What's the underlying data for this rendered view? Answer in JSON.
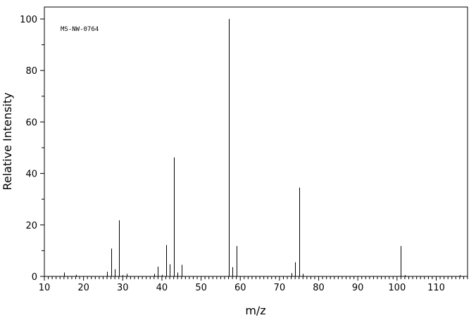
{
  "chart_data": {
    "type": "bar",
    "spectrum_id": "MS-NW-0764",
    "xlabel": "m/z",
    "ylabel": "Relative Intensity",
    "xlim": [
      10,
      118
    ],
    "ylim": [
      0,
      100
    ],
    "x_ticks": [
      10,
      20,
      30,
      40,
      50,
      60,
      70,
      80,
      90,
      100,
      110
    ],
    "y_ticks": [
      0,
      20,
      40,
      60,
      80,
      100
    ],
    "grid": false,
    "peaks": [
      {
        "mz": 15,
        "intensity": 1.5
      },
      {
        "mz": 18,
        "intensity": 0.6
      },
      {
        "mz": 26,
        "intensity": 1.8
      },
      {
        "mz": 27,
        "intensity": 10.8
      },
      {
        "mz": 28,
        "intensity": 2.8
      },
      {
        "mz": 29,
        "intensity": 21.8
      },
      {
        "mz": 30,
        "intensity": 0.5
      },
      {
        "mz": 31,
        "intensity": 1.0
      },
      {
        "mz": 38,
        "intensity": 1.0
      },
      {
        "mz": 39,
        "intensity": 3.8
      },
      {
        "mz": 40,
        "intensity": 0.6
      },
      {
        "mz": 41,
        "intensity": 12.2
      },
      {
        "mz": 42,
        "intensity": 4.7
      },
      {
        "mz": 43,
        "intensity": 46.2
      },
      {
        "mz": 44,
        "intensity": 1.5
      },
      {
        "mz": 45,
        "intensity": 4.5
      },
      {
        "mz": 57,
        "intensity": 100
      },
      {
        "mz": 58,
        "intensity": 3.6
      },
      {
        "mz": 59,
        "intensity": 11.8
      },
      {
        "mz": 73,
        "intensity": 1.3
      },
      {
        "mz": 74,
        "intensity": 5.5
      },
      {
        "mz": 75,
        "intensity": 34.5
      },
      {
        "mz": 76,
        "intensity": 1.0
      },
      {
        "mz": 101,
        "intensity": 11.8
      },
      {
        "mz": 102,
        "intensity": 0.5
      },
      {
        "mz": 116,
        "intensity": 0.5
      }
    ]
  }
}
